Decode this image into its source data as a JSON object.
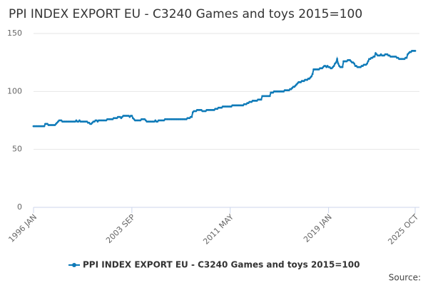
{
  "chart_data": {
    "type": "line",
    "title": "PPI INDEX EXPORT EU - C3240 Games and toys 2015=100",
    "source": "Source:",
    "categories": [
      "1996 JAN",
      null,
      null,
      null,
      null,
      null,
      null,
      null,
      null,
      null,
      null,
      null,
      null,
      null,
      null,
      null,
      null,
      null,
      null,
      null,
      null,
      null,
      null,
      null,
      null,
      null,
      null,
      null,
      null,
      null,
      null,
      null,
      null,
      null,
      null,
      null,
      null,
      null,
      null,
      null,
      null,
      null,
      null,
      null,
      null,
      null,
      null,
      null,
      null,
      null,
      null,
      null,
      null,
      null,
      null,
      null,
      null,
      null,
      null,
      null,
      null,
      null,
      null,
      null,
      null,
      null,
      null,
      null,
      null,
      null,
      null,
      null,
      null,
      null,
      null,
      null,
      null,
      null,
      null,
      null,
      null,
      null,
      null,
      null,
      null,
      null,
      null,
      null,
      null,
      null,
      null,
      null,
      "2003 SEP",
      null,
      null,
      null,
      null,
      null,
      null,
      null,
      null,
      null,
      null,
      null,
      null,
      null,
      null,
      null,
      null,
      null,
      null,
      null,
      null,
      null,
      null,
      null,
      null,
      null,
      null,
      null,
      null,
      null,
      null,
      null,
      null,
      null,
      null,
      null,
      null,
      null,
      null,
      null,
      null,
      null,
      null,
      null,
      null,
      null,
      null,
      null,
      null,
      null,
      null,
      null,
      null,
      null,
      null,
      null,
      null,
      null,
      null,
      null,
      null,
      null,
      null,
      null,
      null,
      null,
      null,
      null,
      null,
      null,
      null,
      null,
      null,
      null,
      null,
      null,
      null,
      null,
      null,
      null,
      null,
      null,
      null,
      null,
      null,
      null,
      null,
      null,
      null,
      null,
      null,
      null,
      "2011 MAY",
      null,
      null,
      null,
      null,
      null,
      null,
      null,
      null,
      null,
      null,
      null,
      null,
      null,
      null,
      null,
      null,
      null,
      null,
      null,
      null,
      null,
      null,
      null,
      null,
      null,
      null,
      null,
      null,
      null,
      null,
      null,
      null,
      null,
      null,
      null,
      null,
      null,
      null,
      null,
      null,
      null,
      null,
      null,
      null,
      null,
      null,
      null,
      null,
      null,
      null,
      null,
      null,
      null,
      null,
      null,
      null,
      null,
      null,
      null,
      null,
      null,
      null,
      null,
      null,
      null,
      null,
      null,
      null,
      null,
      null,
      null,
      null,
      null,
      null,
      null,
      null,
      null,
      null,
      null,
      null,
      null,
      null,
      null,
      null,
      null,
      null,
      null,
      null,
      null,
      null,
      null,
      "2019 JAN",
      null,
      null,
      null,
      null,
      null,
      null,
      null,
      null,
      null,
      null,
      null,
      null,
      null,
      null,
      null,
      null,
      null,
      null,
      null,
      null,
      null,
      null,
      null,
      null,
      null,
      null,
      null,
      null,
      null,
      null,
      null,
      null,
      null,
      null,
      null,
      null,
      null,
      null,
      null,
      null,
      null,
      null,
      null,
      null,
      null,
      null,
      null,
      null,
      null,
      null,
      null,
      null,
      null,
      null,
      null,
      null,
      null,
      null,
      null,
      null,
      null,
      null,
      null,
      null,
      null,
      null,
      null,
      null,
      null,
      null,
      null,
      null,
      null,
      null,
      null,
      null,
      null,
      null,
      null,
      null,
      "2025 OCT"
    ],
    "series": [
      {
        "name": "PPI INDEX EXPORT EU - C3240 Games and toys 2015=100",
        "color": "#0e7ab8",
        "values": [
          70,
          70,
          70,
          70,
          70,
          70,
          70,
          70,
          70,
          70,
          70,
          72,
          72,
          72,
          71,
          71,
          71,
          71,
          71,
          71,
          71,
          72,
          73,
          74,
          75,
          75,
          75,
          74,
          74,
          74,
          74,
          74,
          74,
          74,
          74,
          74,
          74,
          74,
          74,
          74,
          75,
          74,
          74,
          75,
          74,
          74,
          74,
          74,
          74,
          74,
          74,
          73,
          73,
          72,
          72,
          73,
          74,
          74,
          75,
          75,
          74,
          75,
          75,
          75,
          75,
          75,
          75,
          75,
          75,
          76,
          76,
          76,
          76,
          76,
          76,
          77,
          77,
          77,
          77,
          78,
          78,
          78,
          77,
          78,
          79,
          79,
          79,
          79,
          79,
          79,
          78,
          79,
          79,
          77,
          76,
          75,
          75,
          75,
          75,
          75,
          75,
          76,
          76,
          76,
          76,
          75,
          74,
          74,
          74,
          74,
          74,
          74,
          74,
          74,
          75,
          74,
          74,
          75,
          75,
          75,
          75,
          75,
          75,
          76,
          76,
          76,
          76,
          76,
          76,
          76,
          76,
          76,
          76,
          76,
          76,
          76,
          76,
          76,
          76,
          76,
          76,
          76,
          76,
          76,
          77,
          77,
          77,
          78,
          78,
          82,
          83,
          83,
          83,
          84,
          84,
          84,
          84,
          84,
          83,
          83,
          83,
          83,
          84,
          84,
          84,
          84,
          84,
          84,
          84,
          84,
          85,
          85,
          85,
          86,
          86,
          86,
          86,
          87,
          87,
          87,
          87,
          87,
          87,
          87,
          87,
          87,
          88,
          88,
          88,
          88,
          88,
          88,
          88,
          88,
          88,
          88,
          88,
          89,
          89,
          89,
          90,
          90,
          91,
          91,
          91,
          92,
          92,
          92,
          92,
          92,
          93,
          93,
          93,
          93,
          96,
          96,
          96,
          96,
          96,
          96,
          96,
          96,
          99,
          99,
          99,
          100,
          100,
          100,
          100,
          100,
          100,
          100,
          100,
          100,
          100,
          101,
          101,
          101,
          101,
          101,
          102,
          102,
          103,
          104,
          104,
          105,
          106,
          107,
          108,
          108,
          108,
          109,
          109,
          109,
          110,
          110,
          110,
          111,
          111,
          112,
          113,
          115,
          119,
          119,
          119,
          119,
          119,
          119,
          120,
          120,
          120,
          121,
          122,
          122,
          121,
          122,
          121,
          121,
          120,
          120,
          121,
          122,
          124,
          125,
          128,
          124,
          122,
          121,
          121,
          121,
          126,
          126,
          126,
          126,
          127,
          127,
          127,
          126,
          125,
          125,
          124,
          122,
          122,
          121,
          121,
          121,
          121,
          122,
          122,
          123,
          123,
          123,
          124,
          126,
          128,
          128,
          129,
          129,
          130,
          130,
          133,
          132,
          131,
          131,
          131,
          132,
          131,
          131,
          131,
          132,
          132,
          132,
          131,
          131,
          130,
          130,
          130,
          130,
          130,
          130,
          129,
          129,
          128,
          128,
          128,
          128,
          128,
          128,
          129,
          129,
          132,
          133,
          134,
          134,
          135,
          135,
          135,
          135
        ]
      }
    ],
    "ylim": [
      0,
      150
    ],
    "yticks": [
      0,
      50,
      100,
      150
    ],
    "grid": true,
    "legend": "bottom"
  }
}
